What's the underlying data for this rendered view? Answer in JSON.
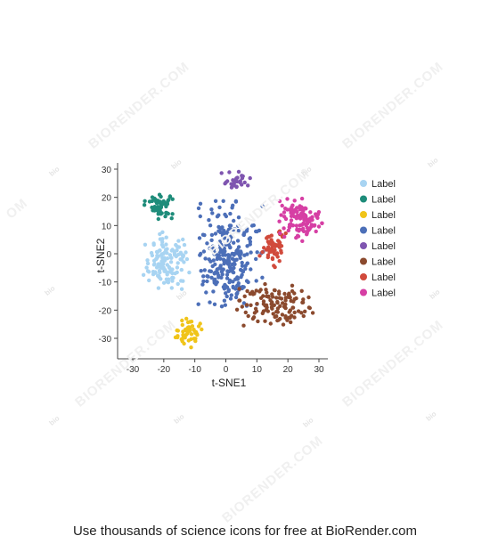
{
  "footer": {
    "text": "Use thousands of science icons for free at BioRender.com"
  },
  "watermark": {
    "word": "BIORENDER.COM",
    "small": "bio",
    "edge": "OM"
  },
  "chart_data": {
    "type": "scatter",
    "title": "",
    "xlabel": "t-SNE1",
    "ylabel": "t-SNE2",
    "xlim": [
      -30,
      30
    ],
    "ylim": [
      -35,
      30
    ],
    "xticks": [
      -30,
      -20,
      -10,
      0,
      10,
      20,
      30
    ],
    "yticks": [
      30,
      20,
      10,
      0,
      -10,
      -20,
      -30
    ],
    "xtick_labels": [
      "-30",
      "-20",
      "-10",
      "0",
      "10",
      "20",
      "30"
    ],
    "ytick_labels": [
      "30",
      "20",
      "10",
      "0",
      "-10",
      "-20",
      "-30"
    ],
    "grid": false,
    "legend_position": "right",
    "series": [
      {
        "name": "Label",
        "color": "#a8d4f2",
        "cx": -19,
        "cy": -3,
        "sx": 3.6,
        "sy": 5.0,
        "n": 130
      },
      {
        "name": "Label",
        "color": "#1e8c7a",
        "cx": -21,
        "cy": 17,
        "sx": 2.5,
        "sy": 2.3,
        "n": 55
      },
      {
        "name": "Label",
        "color": "#f0c419",
        "cx": -12,
        "cy": -28,
        "sx": 2.3,
        "sy": 2.6,
        "n": 50
      },
      {
        "name": "Label",
        "color": "#4c6fb8",
        "cx": 1,
        "cy": 0,
        "sx": 5.0,
        "sy": 8.5,
        "n": 260
      },
      {
        "name": "Label",
        "color": "#7f55b0",
        "cx": 3,
        "cy": 26,
        "sx": 2.4,
        "sy": 1.6,
        "n": 30
      },
      {
        "name": "Label",
        "color": "#8b4a2e",
        "cx": 16,
        "cy": -18,
        "sx": 6.0,
        "sy": 3.6,
        "n": 120
      },
      {
        "name": "Label",
        "color": "#d14a3c",
        "cx": 15,
        "cy": 2,
        "sx": 2.1,
        "sy": 3.3,
        "n": 60
      },
      {
        "name": "Label",
        "color": "#d63fa4",
        "cx": 24,
        "cy": 12,
        "sx": 3.2,
        "sy": 3.6,
        "n": 110
      }
    ]
  }
}
